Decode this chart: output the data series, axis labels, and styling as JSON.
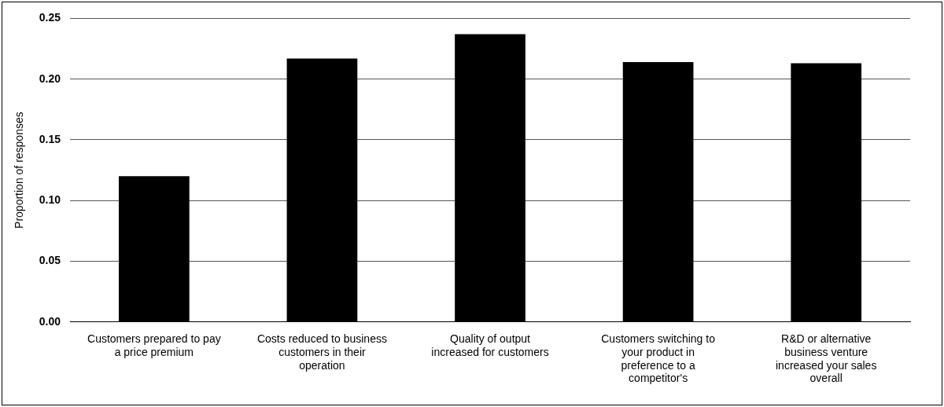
{
  "chart_data": {
    "type": "bar",
    "ylabel": "Proportion of responses",
    "categories": [
      "Customers prepared to pay a price premium",
      "Costs reduced to business customers in their operation",
      "Quality of output increased for customers",
      "Customers switching to your product in preference to a competitor's",
      "R&D or alternative business venture increased your sales overall"
    ],
    "values": [
      0.12,
      0.217,
      0.237,
      0.214,
      0.213
    ],
    "color": "#000000",
    "ylim": [
      0,
      0.25
    ],
    "yticks": [
      {
        "value": 0,
        "label": "0.00"
      },
      {
        "value": 0.05,
        "label": "0.05"
      },
      {
        "value": 0.1,
        "label": "0.10"
      },
      {
        "value": 0.15,
        "label": "0.15"
      },
      {
        "value": 0.2,
        "label": "0.20"
      },
      {
        "value": 0.25,
        "label": "0.25"
      }
    ],
    "grid": "y",
    "legend": false
  }
}
